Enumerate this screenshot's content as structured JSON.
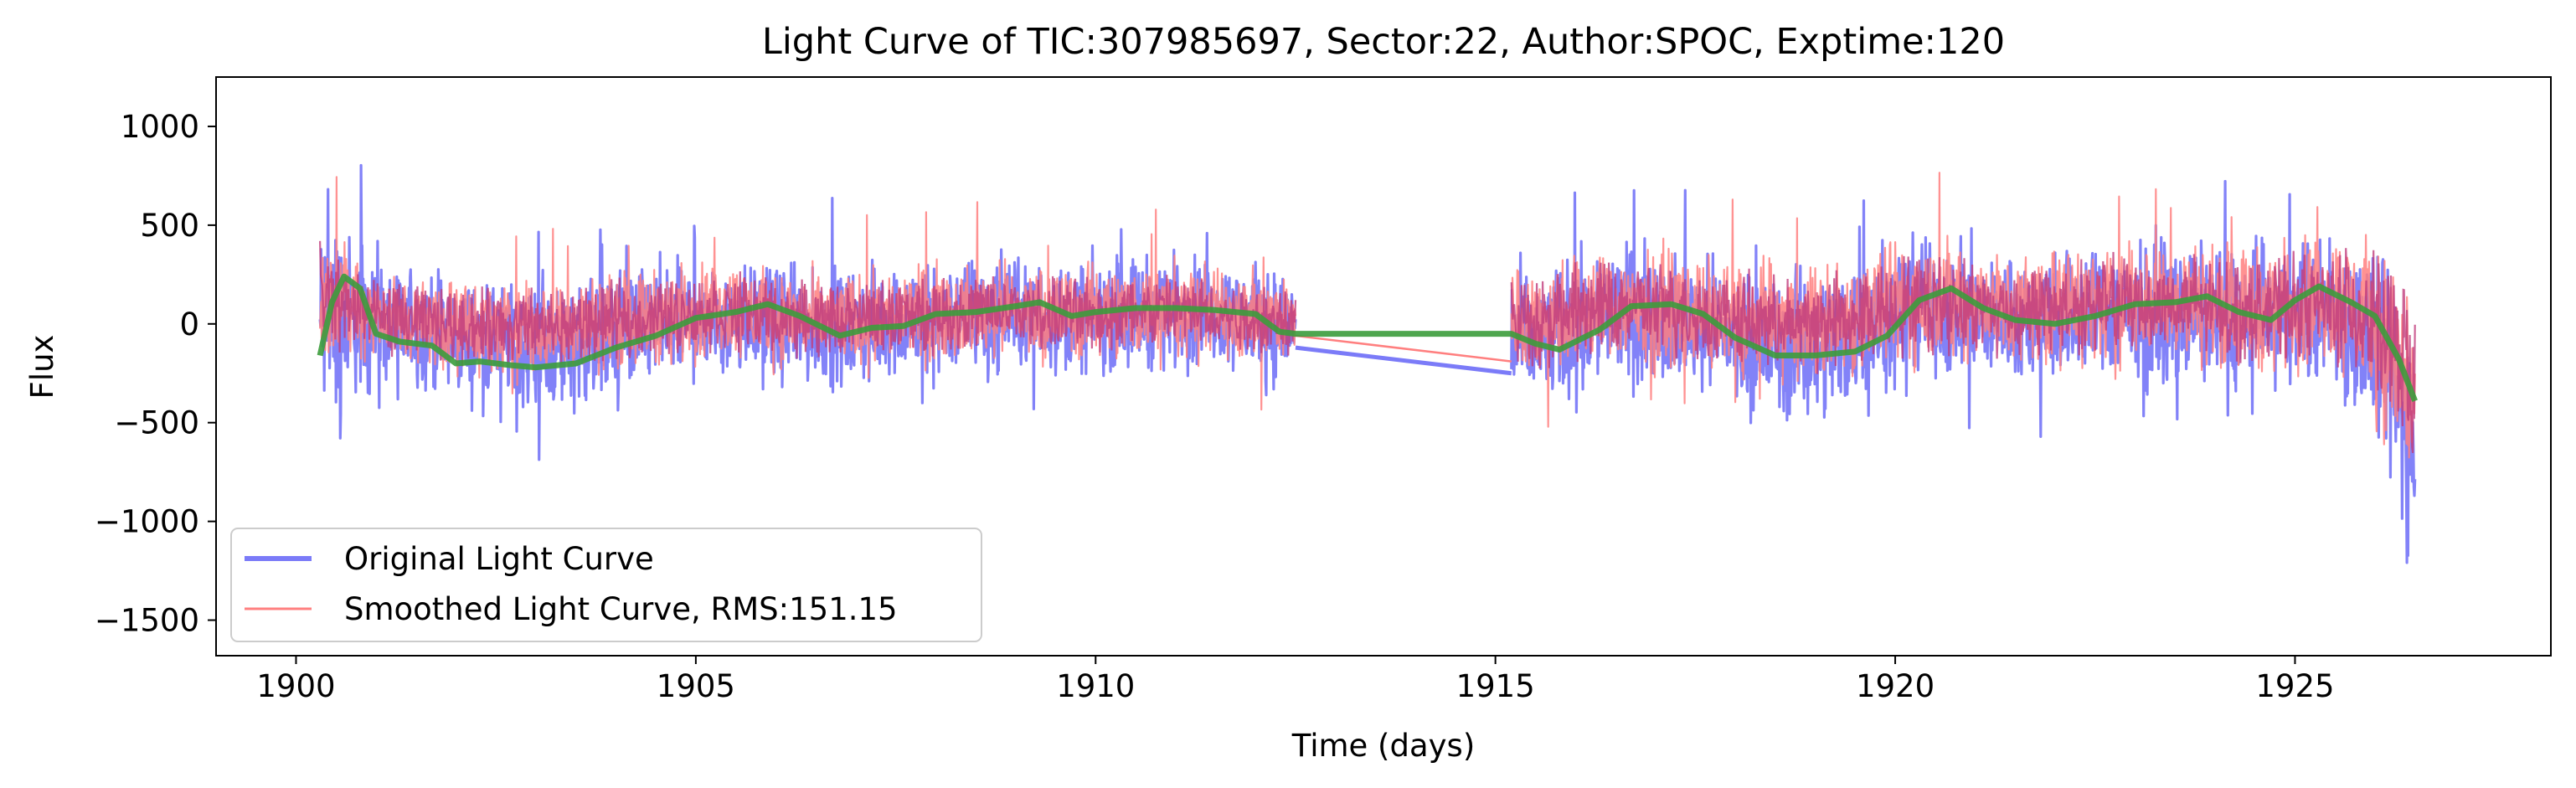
{
  "chart_data": {
    "type": "line",
    "title": "Light Curve of TIC:307985697, Sector:22, Author:SPOC, Exptime:120",
    "xlabel": "Time (days)",
    "ylabel": "Flux",
    "xlim": [
      1899,
      1928.2
    ],
    "ylim": [
      -1680,
      1250
    ],
    "xticks": [
      1900,
      1905,
      1910,
      1915,
      1920,
      1925
    ],
    "yticks": [
      -1500,
      -1000,
      -500,
      0,
      500,
      1000
    ],
    "xtick_labels": [
      "1900",
      "1905",
      "1910",
      "1915",
      "1920",
      "1925"
    ],
    "ytick_labels": [
      "−1500",
      "−1000",
      "−500",
      "0",
      "500",
      "1000"
    ],
    "grid": false,
    "legend_position": "lower-left",
    "colors": {
      "original": "#7b7bf8",
      "smoothed": "#ff7f7f",
      "trend": "#3c9c3c",
      "overlap": "#c03c7c"
    },
    "series": [
      {
        "name": "Original Light Curve",
        "style": "noisy band",
        "segments": [
          {
            "x": [
              1900.3,
              1900.6,
              1901.0,
              1901.5,
              1902.0,
              1902.5,
              1903.0,
              1903.5,
              1904.0,
              1904.5,
              1905.0,
              1905.5,
              1906.0,
              1906.5,
              1907.0,
              1907.5,
              1908.0,
              1908.5,
              1909.0,
              1909.5,
              1910.0,
              1910.5,
              1911.0,
              1911.5,
              1912.0,
              1912.5
            ],
            "lower": [
              -650,
              -450,
              -350,
              -350,
              -400,
              -430,
              -480,
              -450,
              -400,
              -350,
              -320,
              -300,
              -320,
              -330,
              -350,
              -300,
              -280,
              -280,
              -260,
              -270,
              -270,
              -260,
              -240,
              -250,
              -300,
              -350
            ],
            "upper": [
              600,
              550,
              380,
              280,
              250,
              260,
              250,
              270,
              300,
              340,
              350,
              400,
              320,
              280,
              300,
              330,
              360,
              380,
              380,
              340,
              350,
              380,
              380,
              350,
              340,
              330
            ]
          },
          {
            "x": [
              1915.2,
              1915.5,
              1916.0,
              1916.5,
              1917.0,
              1917.5,
              1918.0,
              1918.5,
              1919.0,
              1919.5,
              1920.0,
              1920.5,
              1921.0,
              1921.5,
              1922.0,
              1922.5,
              1923.0,
              1923.5,
              1924.0,
              1924.5,
              1925.0,
              1925.5,
              1926.0,
              1926.5
            ],
            "lower": [
              -420,
              -500,
              -400,
              -320,
              -320,
              -360,
              -440,
              -520,
              -520,
              -450,
              -350,
              -300,
              -320,
              -350,
              -330,
              -320,
              -300,
              -320,
              -360,
              -380,
              -350,
              -400,
              -650,
              -1300
            ],
            "upper": [
              300,
              280,
              400,
              430,
              420,
              380,
              330,
              300,
              310,
              360,
              430,
              500,
              420,
              380,
              420,
              450,
              460,
              450,
              440,
              420,
              450,
              500,
              420,
              100
            ]
          }
        ],
        "gap_line": {
          "x": [
            1912.5,
            1915.2
          ],
          "y": [
            -120,
            -250
          ]
        }
      },
      {
        "name": "Smoothed Light Curve, RMS:151.15",
        "style": "noisy band",
        "segments": [
          {
            "x": [
              1900.3,
              1900.6,
              1901.0,
              1901.5,
              1902.0,
              1902.5,
              1903.0,
              1903.5,
              1904.0,
              1904.5,
              1905.0,
              1905.5,
              1906.0,
              1906.5,
              1907.0,
              1907.5,
              1908.0,
              1908.5,
              1909.0,
              1909.5,
              1910.0,
              1910.5,
              1911.0,
              1911.5,
              1912.0,
              1912.5
            ],
            "lower": [
              -250,
              -180,
              -220,
              -240,
              -260,
              -280,
              -300,
              -280,
              -250,
              -220,
              -200,
              -200,
              -220,
              -240,
              -230,
              -210,
              -200,
              -200,
              -190,
              -200,
              -200,
              -190,
              -180,
              -190,
              -220,
              -250
            ],
            "upper": [
              500,
              430,
              300,
              260,
              250,
              250,
              250,
              260,
              280,
              300,
              320,
              350,
              300,
              270,
              280,
              300,
              320,
              330,
              330,
              310,
              320,
              330,
              330,
              310,
              300,
              290
            ]
          },
          {
            "x": [
              1915.2,
              1915.5,
              1916.0,
              1916.5,
              1917.0,
              1917.5,
              1918.0,
              1918.5,
              1919.0,
              1919.5,
              1920.0,
              1920.5,
              1921.0,
              1921.5,
              1922.0,
              1922.5,
              1923.0,
              1923.5,
              1924.0,
              1924.5,
              1925.0,
              1925.5,
              1926.0,
              1926.5
            ],
            "lower": [
              -250,
              -300,
              -260,
              -220,
              -220,
              -250,
              -300,
              -330,
              -330,
              -300,
              -240,
              -210,
              -220,
              -240,
              -230,
              -220,
              -210,
              -220,
              -250,
              -260,
              -240,
              -280,
              -450,
              -1100
            ],
            "upper": [
              330,
              320,
              400,
              420,
              400,
              380,
              340,
              320,
              330,
              370,
              440,
              480,
              420,
              390,
              420,
              440,
              460,
              450,
              440,
              420,
              450,
              520,
              480,
              350
            ]
          }
        ],
        "gap_line": {
          "x": [
            1912.5,
            1915.2
          ],
          "y": [
            -60,
            -190
          ]
        }
      },
      {
        "name": "",
        "style": "trend line",
        "x": [
          1900.3,
          1900.45,
          1900.6,
          1900.8,
          1901.0,
          1901.3,
          1901.7,
          1902.0,
          1902.3,
          1902.7,
          1903.0,
          1903.5,
          1904.0,
          1904.5,
          1905.0,
          1905.5,
          1905.9,
          1906.3,
          1906.8,
          1907.2,
          1907.6,
          1908.0,
          1908.5,
          1909.0,
          1909.3,
          1909.7,
          1910.0,
          1910.5,
          1911.0,
          1911.5,
          1912.0,
          1912.3,
          1912.5,
          1915.2,
          1915.5,
          1915.8,
          1916.3,
          1916.7,
          1917.2,
          1917.6,
          1918.0,
          1918.5,
          1919.0,
          1919.5,
          1919.9,
          1920.3,
          1920.7,
          1921.1,
          1921.5,
          1922.0,
          1922.5,
          1923.0,
          1923.5,
          1923.9,
          1924.3,
          1924.7,
          1925.0,
          1925.3,
          1925.7,
          1926.0,
          1926.3,
          1926.5
        ],
        "y": [
          -160,
          110,
          240,
          180,
          -50,
          -90,
          -110,
          -200,
          -190,
          -210,
          -220,
          -200,
          -120,
          -60,
          30,
          60,
          100,
          40,
          -60,
          -20,
          -10,
          50,
          60,
          90,
          110,
          40,
          60,
          80,
          80,
          70,
          50,
          -40,
          -50,
          -50,
          -100,
          -130,
          -30,
          90,
          100,
          50,
          -70,
          -160,
          -160,
          -140,
          -60,
          120,
          180,
          80,
          20,
          0,
          40,
          100,
          110,
          140,
          60,
          20,
          120,
          190,
          110,
          40,
          -180,
          -390
        ]
      }
    ]
  }
}
